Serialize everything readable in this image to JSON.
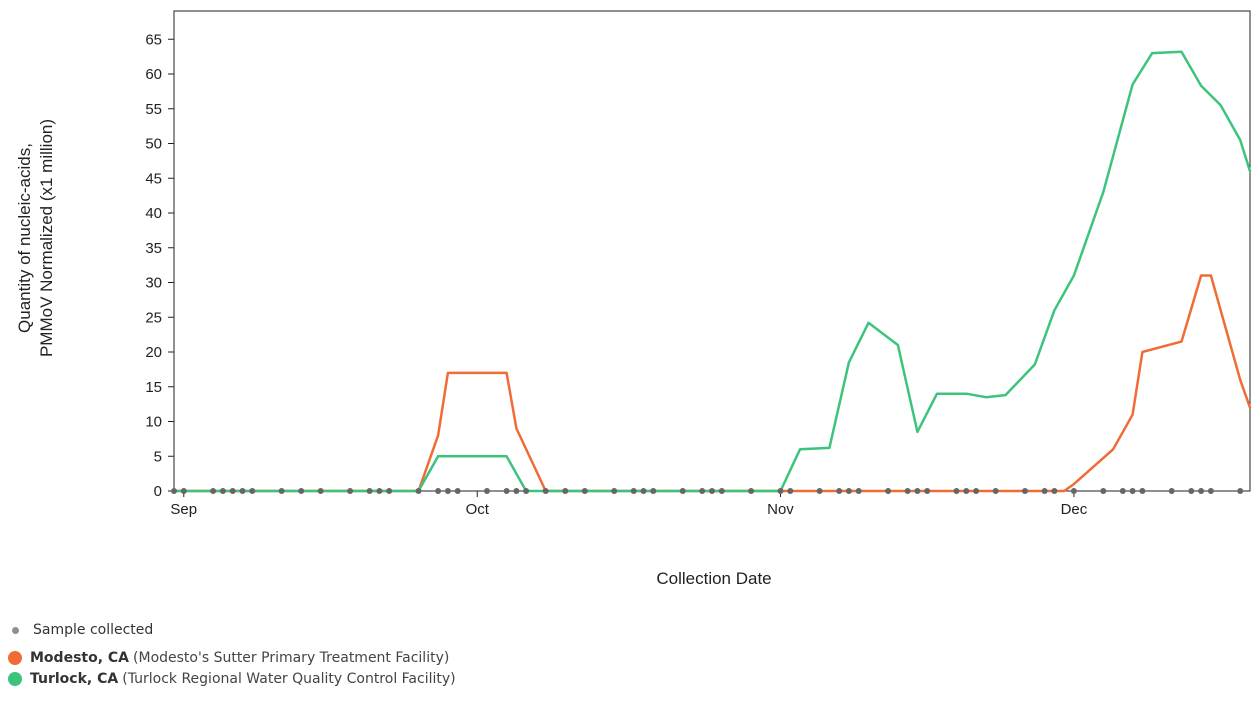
{
  "chart_data": {
    "type": "line",
    "ylabel_lines": [
      "Quantity of nucleic-acids,",
      "PMMoV Normalized (x1 million)"
    ],
    "xlabel": "Collection Date",
    "ylim": [
      0,
      70
    ],
    "y_ticks": [
      0,
      5,
      10,
      15,
      20,
      25,
      30,
      35,
      40,
      45,
      50,
      55,
      60,
      65
    ],
    "x_domain": [
      "2023-08-31",
      "2023-12-19"
    ],
    "x_ticks": [
      {
        "date": "2023-09-01",
        "label": "Sep"
      },
      {
        "date": "2023-10-01",
        "label": "Oct"
      },
      {
        "date": "2023-11-01",
        "label": "Nov"
      },
      {
        "date": "2023-12-01",
        "label": "Dec"
      }
    ],
    "series": [
      {
        "name": "Modesto, CA",
        "color": "#ef6c36",
        "points": [
          [
            "2023-08-31",
            0
          ],
          [
            "2023-09-25",
            0
          ],
          [
            "2023-09-27",
            8
          ],
          [
            "2023-09-28",
            17
          ],
          [
            "2023-10-04",
            17
          ],
          [
            "2023-10-05",
            9
          ],
          [
            "2023-10-08",
            0
          ],
          [
            "2023-11-30",
            0
          ],
          [
            "2023-12-01",
            1
          ],
          [
            "2023-12-05",
            6
          ],
          [
            "2023-12-07",
            11
          ],
          [
            "2023-12-08",
            20
          ],
          [
            "2023-12-12",
            21.5
          ],
          [
            "2023-12-14",
            31
          ],
          [
            "2023-12-15",
            31
          ],
          [
            "2023-12-18",
            16
          ],
          [
            "2023-12-19",
            12
          ]
        ]
      },
      {
        "name": "Turlock, CA",
        "color": "#3cc47c",
        "points": [
          [
            "2023-08-31",
            0
          ],
          [
            "2023-09-25",
            0
          ],
          [
            "2023-09-27",
            5
          ],
          [
            "2023-10-04",
            5
          ],
          [
            "2023-10-06",
            0
          ],
          [
            "2023-11-01",
            0
          ],
          [
            "2023-11-03",
            6
          ],
          [
            "2023-11-06",
            6.2
          ],
          [
            "2023-11-08",
            18.5
          ],
          [
            "2023-11-10",
            24.2
          ],
          [
            "2023-11-13",
            21
          ],
          [
            "2023-11-15",
            8.5
          ],
          [
            "2023-11-17",
            14
          ],
          [
            "2023-11-20",
            14
          ],
          [
            "2023-11-22",
            13.5
          ],
          [
            "2023-11-24",
            13.8
          ],
          [
            "2023-11-27",
            18.2
          ],
          [
            "2023-11-29",
            26
          ],
          [
            "2023-12-01",
            31
          ],
          [
            "2023-12-04",
            43
          ],
          [
            "2023-12-07",
            58.5
          ],
          [
            "2023-12-09",
            63
          ],
          [
            "2023-12-12",
            63.2
          ],
          [
            "2023-12-14",
            58.3
          ],
          [
            "2023-12-16",
            55.5
          ],
          [
            "2023-12-18",
            50.5
          ],
          [
            "2023-12-19",
            46
          ]
        ]
      }
    ],
    "sample_dates": [
      "2023-08-31",
      "2023-09-01",
      "2023-09-04",
      "2023-09-05",
      "2023-09-06",
      "2023-09-07",
      "2023-09-08",
      "2023-09-11",
      "2023-09-13",
      "2023-09-15",
      "2023-09-18",
      "2023-09-20",
      "2023-09-21",
      "2023-09-22",
      "2023-09-25",
      "2023-09-27",
      "2023-09-28",
      "2023-09-29",
      "2023-10-02",
      "2023-10-04",
      "2023-10-05",
      "2023-10-06",
      "2023-10-08",
      "2023-10-10",
      "2023-10-12",
      "2023-10-15",
      "2023-10-17",
      "2023-10-18",
      "2023-10-19",
      "2023-10-22",
      "2023-10-24",
      "2023-10-25",
      "2023-10-26",
      "2023-10-29",
      "2023-11-01",
      "2023-11-02",
      "2023-11-05",
      "2023-11-07",
      "2023-11-08",
      "2023-11-09",
      "2023-11-12",
      "2023-11-14",
      "2023-11-15",
      "2023-11-16",
      "2023-11-19",
      "2023-11-20",
      "2023-11-21",
      "2023-11-23",
      "2023-11-26",
      "2023-11-28",
      "2023-11-29",
      "2023-12-01",
      "2023-12-04",
      "2023-12-06",
      "2023-12-07",
      "2023-12-08",
      "2023-12-11",
      "2023-12-13",
      "2023-12-14",
      "2023-12-15",
      "2023-12-18"
    ],
    "sample_color": "#666666",
    "grid": false
  },
  "legend": {
    "sample_label": "Sample collected",
    "items": [
      {
        "name": "Modesto, CA",
        "facility": "Modesto's Sutter Primary Treatment Facility",
        "color": "#ef6c36"
      },
      {
        "name": "Turlock, CA",
        "facility": "Turlock Regional Water Quality Control Facility",
        "color": "#3cc47c"
      }
    ]
  }
}
